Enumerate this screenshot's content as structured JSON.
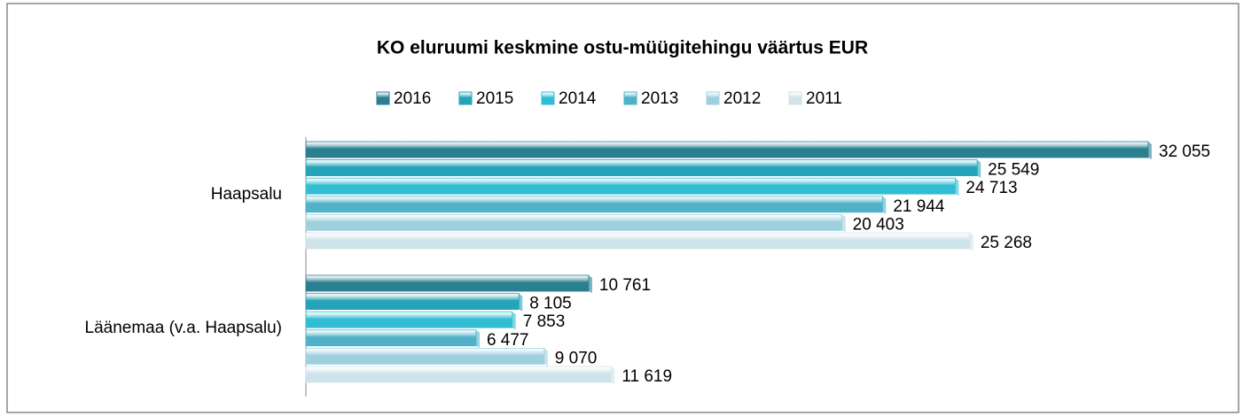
{
  "chart_data": {
    "type": "bar",
    "orientation": "horizontal",
    "title": "KO eluruumi keskmine  ostu-müügitehingu väärtus EUR",
    "categories": [
      "Haapsalu",
      "Läänemaa (v.a. Haapsalu)"
    ],
    "series": [
      {
        "name": "2016",
        "color": "#2a7f90",
        "values": [
          32055,
          10761
        ],
        "value_labels": [
          "32 055",
          "10 761"
        ]
      },
      {
        "name": "2015",
        "color": "#25a3b8",
        "values": [
          25549,
          8105
        ],
        "value_labels": [
          "25 549",
          "8 105"
        ]
      },
      {
        "name": "2014",
        "color": "#33bdd3",
        "values": [
          24713,
          7853
        ],
        "value_labels": [
          "24 713",
          "7 853"
        ]
      },
      {
        "name": "2013",
        "color": "#4fb2c8",
        "values": [
          21944,
          6477
        ],
        "value_labels": [
          "21 944",
          "6 477"
        ]
      },
      {
        "name": "2012",
        "color": "#9fd0de",
        "values": [
          20403,
          9070
        ],
        "value_labels": [
          "20 403",
          "9 070"
        ]
      },
      {
        "name": "2011",
        "color": "#cfe3ea",
        "values": [
          25268,
          11619
        ],
        "value_labels": [
          "25 268",
          "11 619"
        ]
      }
    ],
    "legend": "top"
  }
}
